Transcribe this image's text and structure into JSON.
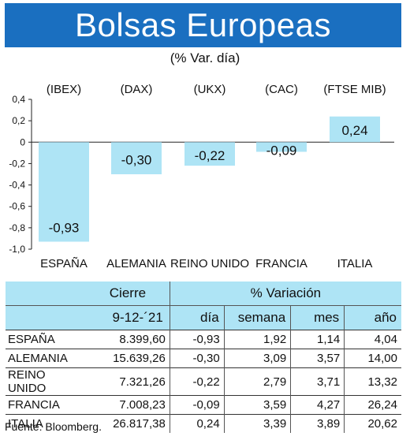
{
  "header": {
    "title": "Bolsas Europeas",
    "subtitle": "(% Var. día)"
  },
  "chart_data": {
    "type": "bar",
    "indices": [
      "(IBEX)",
      "(DAX)",
      "(UKX)",
      "(CAC)",
      "(FTSE MIB)"
    ],
    "categories": [
      "ESPAÑA",
      "ALEMANIA",
      "REINO UNIDO",
      "FRANCIA",
      "ITALIA"
    ],
    "values": [
      -0.93,
      -0.3,
      -0.22,
      -0.09,
      0.24
    ],
    "value_labels": [
      "-0,93",
      "-0,30",
      "-0,22",
      "-0,09",
      "0,24"
    ],
    "yticks": [
      0.4,
      0.2,
      0,
      -0.2,
      -0.4,
      -0.6,
      -0.8,
      -1.0
    ],
    "ytick_labels": [
      "0,4",
      "0,2",
      "0",
      "-0,2",
      "-0,4",
      "-0,6",
      "-0,8",
      "-1,0"
    ],
    "ylim": [
      -1.0,
      0.4
    ],
    "bar_color": "#aee4f5",
    "grid": false
  },
  "table": {
    "group_headers": {
      "cierre": "Cierre",
      "variacion": "% Variación"
    },
    "sub_headers": {
      "date": "9-12-´21",
      "dia": "día",
      "semana": "semana",
      "mes": "mes",
      "ano": "año"
    },
    "rows": [
      {
        "name": "ESPAÑA",
        "cierre": "8.399,60",
        "dia": "-0,93",
        "semana": "1,92",
        "mes": "1,14",
        "ano": "4,04"
      },
      {
        "name": "ALEMANIA",
        "cierre": "15.639,26",
        "dia": "-0,30",
        "semana": "3,09",
        "mes": "3,57",
        "ano": "14,00"
      },
      {
        "name": "REINO UNIDO",
        "cierre": "7.321,26",
        "dia": "-0,22",
        "semana": "2,79",
        "mes": "3,71",
        "ano": "13,32"
      },
      {
        "name": "FRANCIA",
        "cierre": "7.008,23",
        "dia": "-0,09",
        "semana": "3,59",
        "mes": "4,27",
        "ano": "26,24"
      },
      {
        "name": "ITALIA",
        "cierre": "26.817,38",
        "dia": "0,24",
        "semana": "3,39",
        "mes": "3,89",
        "ano": "20,62"
      }
    ]
  },
  "source": "Fuente: Bloomberg.",
  "colors": {
    "header_bg": "#1a6fc0",
    "accent": "#aee4f5"
  }
}
